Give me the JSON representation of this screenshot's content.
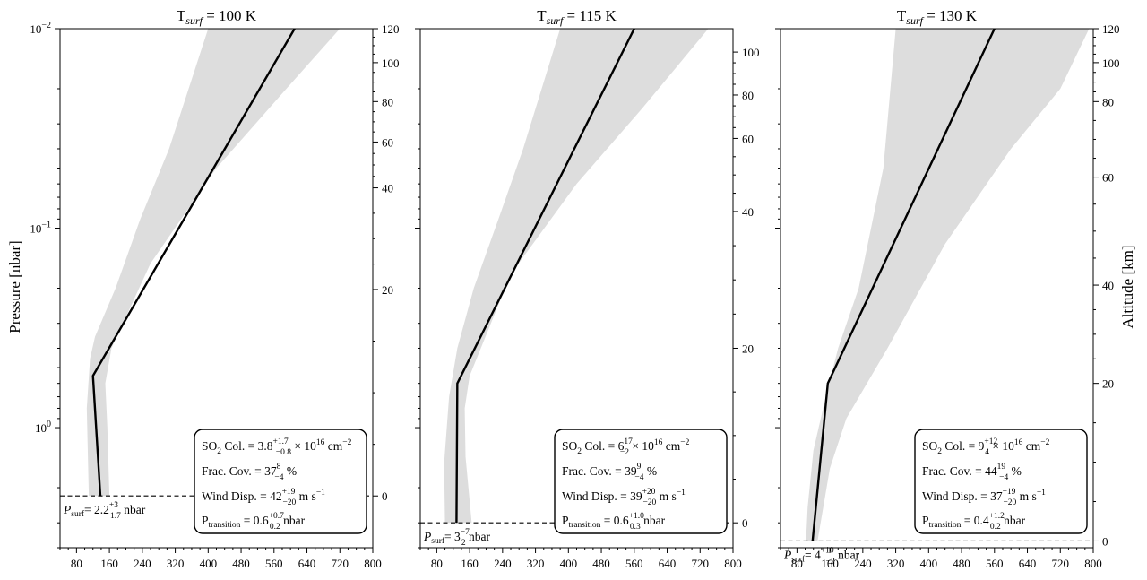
{
  "chart_data": {
    "type": "line",
    "ylabel": "Pressure [nbar]",
    "ylabel_right": "Altitude [km]",
    "y_scale": "log",
    "y_inverted": true,
    "x_ticks": [
      "80",
      "160",
      "240",
      "320",
      "400",
      "480",
      "560",
      "640",
      "720",
      "800"
    ],
    "panels": [
      {
        "title_main": "T",
        "title_sub": "surf",
        "title_rest": " = 100 K",
        "xlim": [
          40,
          800
        ],
        "ylim": [
          0.01,
          4.0
        ],
        "y_ticks_left": [
          {
            "value": 0.01,
            "base": "10",
            "exp": "−2"
          },
          {
            "value": 0.1,
            "base": "10",
            "exp": "−1"
          },
          {
            "value": 1,
            "base": "10",
            "exp": "0"
          }
        ],
        "profile": [
          [
            138,
            2.2
          ],
          [
            120,
            0.55
          ],
          [
            610,
            0.01
          ]
        ],
        "band_left": [
          [
            110,
            2.2
          ],
          [
            105,
            0.8
          ],
          [
            113,
            0.45
          ],
          [
            125,
            0.35
          ],
          [
            175,
            0.2
          ],
          [
            235,
            0.09
          ],
          [
            305,
            0.04
          ],
          [
            400,
            0.01
          ]
        ],
        "band_right": [
          [
            160,
            2.2
          ],
          [
            155,
            1.0
          ],
          [
            150,
            0.6
          ],
          [
            165,
            0.4
          ],
          [
            260,
            0.15
          ],
          [
            420,
            0.05
          ],
          [
            590,
            0.02
          ],
          [
            720,
            0.01
          ]
        ],
        "surface": {
          "pressure": 2.2,
          "label_prefix": "P",
          "label_sub": "surf",
          "value": "= 2.2",
          "up": "+3",
          "down": "1.7",
          "unit": " nbar"
        },
        "altitude_ticks": [
          {
            "label": "120",
            "p": 0.01
          },
          {
            "label": "100",
            "p": 0.0148
          },
          {
            "label": "80",
            "p": 0.0232
          },
          {
            "label": "60",
            "p": 0.037
          },
          {
            "label": "40",
            "p": 0.0628
          },
          {
            "label": "20",
            "p": 0.203
          },
          {
            "label": "0",
            "p": 2.2
          }
        ],
        "box": {
          "so2_label": "SO",
          "so2_sub": "2",
          "so2_rest": " Col. = 3.8",
          "so2_up": "+1.7",
          "so2_down": "−0.8",
          "so2_tail": " × 10",
          "so2_exp": "16",
          "so2_unit": " cm",
          "so2_unit_exp": "−2",
          "frac_label": "Frac. Cov. = 37",
          "frac_up": "8",
          "frac_down": "−4",
          "frac_unit": " %",
          "wind_label": "Wind Disp. = 42",
          "wind_up": "+19",
          "wind_down": "−20",
          "wind_unit": " m s",
          "wind_unit_exp": "−1",
          "ptr_label": "P",
          "ptr_sub": "transition",
          "ptr_rest": " = 0.6",
          "ptr_up": "+0.7",
          "ptr_down": "0.2",
          "ptr_unit": " nbar"
        }
      },
      {
        "title_main": "T",
        "title_sub": "surf",
        "title_rest": " = 115 K",
        "xlim": [
          40,
          800
        ],
        "ylim": [
          0.01,
          4.0
        ],
        "y_ticks_left": [],
        "profile": [
          [
            128,
            3.0
          ],
          [
            130,
            0.6
          ],
          [
            560,
            0.01
          ]
        ],
        "band_left": [
          [
            100,
            3.0
          ],
          [
            98,
            1.5
          ],
          [
            110,
            0.7
          ],
          [
            130,
            0.4
          ],
          [
            170,
            0.2
          ],
          [
            230,
            0.09
          ],
          [
            290,
            0.04
          ],
          [
            380,
            0.01
          ]
        ],
        "band_right": [
          [
            165,
            3.0
          ],
          [
            150,
            1.4
          ],
          [
            148,
            0.8
          ],
          [
            160,
            0.55
          ],
          [
            260,
            0.17
          ],
          [
            420,
            0.06
          ],
          [
            580,
            0.025
          ],
          [
            740,
            0.01
          ]
        ],
        "surface": {
          "pressure": 3.0,
          "label_prefix": "P",
          "label_sub": "surf",
          "value": "= 3",
          "up": "−7",
          "down": "2",
          "unit": " nbar"
        },
        "altitude_ticks": [
          {
            "label": "100",
            "p": 0.0131
          },
          {
            "label": "80",
            "p": 0.0215
          },
          {
            "label": "60",
            "p": 0.0355
          },
          {
            "label": "40",
            "p": 0.0825
          },
          {
            "label": "20",
            "p": 0.4
          },
          {
            "label": "0",
            "p": 3.0
          }
        ],
        "box": {
          "so2_label": "SO",
          "so2_sub": "2",
          "so2_rest": " Col. = 6",
          "so2_up": "17",
          "so2_down": "−2",
          "so2_tail": " × 10",
          "so2_exp": "16",
          "so2_unit": " cm",
          "so2_unit_exp": "−2",
          "frac_label": "Frac. Cov. = 39",
          "frac_up": "9",
          "frac_down": "−4",
          "frac_unit": " %",
          "wind_label": "Wind Disp. = 39",
          "wind_up": "+20",
          "wind_down": "−20",
          "wind_unit": " m s",
          "wind_unit_exp": "−1",
          "ptr_label": "P",
          "ptr_sub": "transition",
          "ptr_rest": " = 0.6",
          "ptr_up": "+1.0",
          "ptr_down": "0.3",
          "ptr_unit": " nbar"
        }
      },
      {
        "title_main": "T",
        "title_sub": "surf",
        "title_rest": " = 130 K",
        "xlim": [
          40,
          800
        ],
        "ylim": [
          0.01,
          4.0
        ],
        "y_ticks_left": [],
        "profile": [
          [
            118,
            3.7
          ],
          [
            155,
            0.6
          ],
          [
            560,
            0.01
          ]
        ],
        "band_left": [
          [
            102,
            3.7
          ],
          [
            106,
            2.5
          ],
          [
            120,
            1.3
          ],
          [
            150,
            0.7
          ],
          [
            180,
            0.4
          ],
          [
            230,
            0.2
          ],
          [
            290,
            0.05
          ],
          [
            320,
            0.01
          ]
        ],
        "band_right": [
          [
            130,
            3.7
          ],
          [
            160,
            1.6
          ],
          [
            200,
            0.9
          ],
          [
            300,
            0.4
          ],
          [
            440,
            0.12
          ],
          [
            600,
            0.04
          ],
          [
            720,
            0.02
          ],
          [
            790,
            0.01
          ]
        ],
        "surface": {
          "pressure": 3.7,
          "label_prefix": "P",
          "label_sub": "surf",
          "value": "= 4",
          "up": "+10",
          "down": "−2",
          "unit": " nbar"
        },
        "altitude_ticks": [
          {
            "label": "120",
            "p": 0.01
          },
          {
            "label": "100",
            "p": 0.0148
          },
          {
            "label": "80",
            "p": 0.0232
          },
          {
            "label": "60",
            "p": 0.0555
          },
          {
            "label": "40",
            "p": 0.193
          },
          {
            "label": "20",
            "p": 0.6
          },
          {
            "label": "0",
            "p": 3.7
          }
        ],
        "box": {
          "so2_label": "SO",
          "so2_sub": "2",
          "so2_rest": " Col. = 9",
          "so2_up": "+12",
          "so2_down": "4",
          "so2_tail": " × 10",
          "so2_exp": "16",
          "so2_unit": " cm",
          "so2_unit_exp": "−2",
          "frac_label": "Frac. Cov. = 44",
          "frac_up": "19",
          "frac_down": "−4",
          "frac_unit": " %",
          "wind_label": "Wind Disp. = 37",
          "wind_up": "−19",
          "wind_down": "−20",
          "wind_unit": " m s",
          "wind_unit_exp": "−1",
          "ptr_label": "P",
          "ptr_sub": "transition",
          "ptr_rest": " = 0.4",
          "ptr_up": "+1.2",
          "ptr_down": "0.2",
          "ptr_unit": " nbar"
        }
      }
    ]
  }
}
